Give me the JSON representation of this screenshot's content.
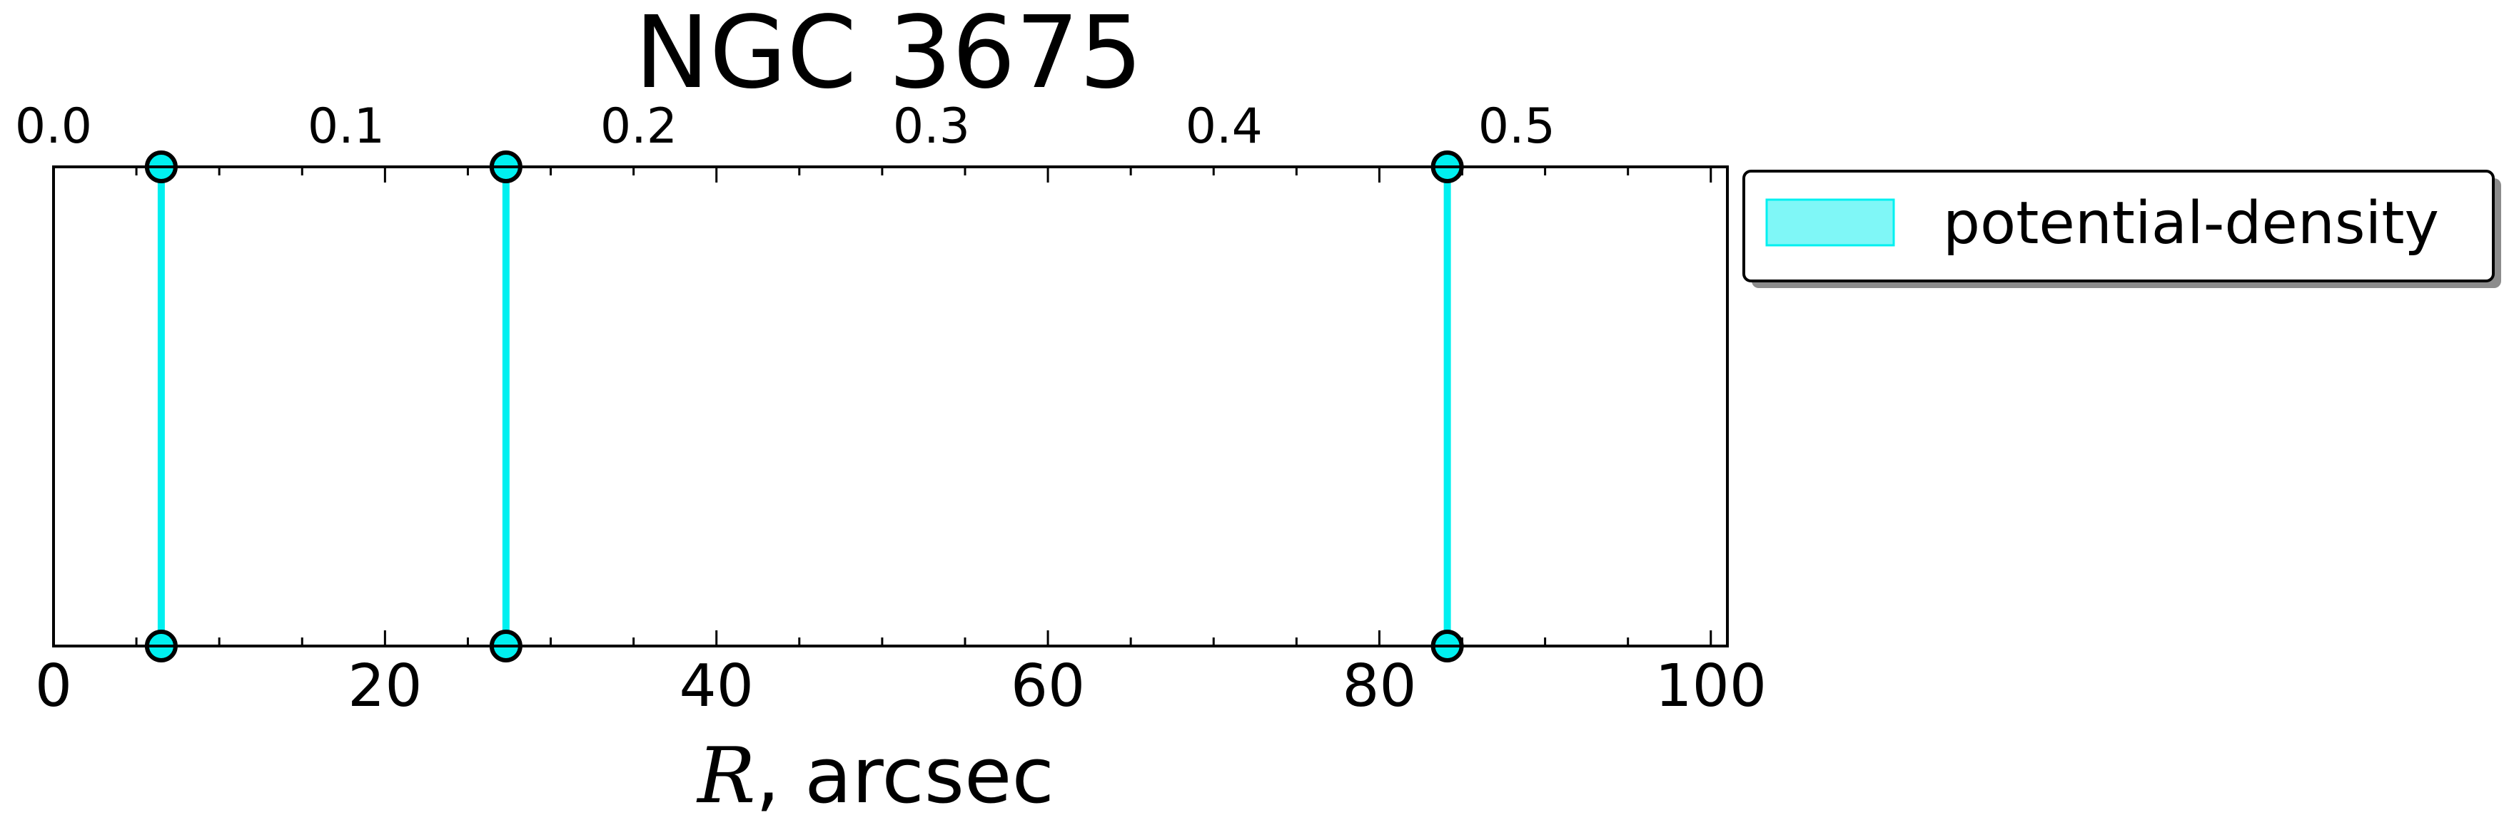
{
  "chart_data": {
    "type": "scatter",
    "title": "NGC 3675",
    "xlabel_var": "R",
    "xlabel_rest": ", arcsec",
    "xlim": [
      0,
      101
    ],
    "xticks": [
      0,
      20,
      40,
      60,
      80,
      100
    ],
    "top_axis": {
      "lim": [
        0,
        0.572
      ],
      "ticks": [
        "0.0",
        "0.1",
        "0.2",
        "0.3",
        "0.4",
        "0.5"
      ]
    },
    "grid": false,
    "legend": {
      "position": "outside-right-top",
      "entries": [
        "potential-density"
      ]
    },
    "series": [
      {
        "name": "potential-density",
        "color": "#00f0f0",
        "x": [
          6.5,
          27.3,
          84.1
        ]
      }
    ]
  }
}
